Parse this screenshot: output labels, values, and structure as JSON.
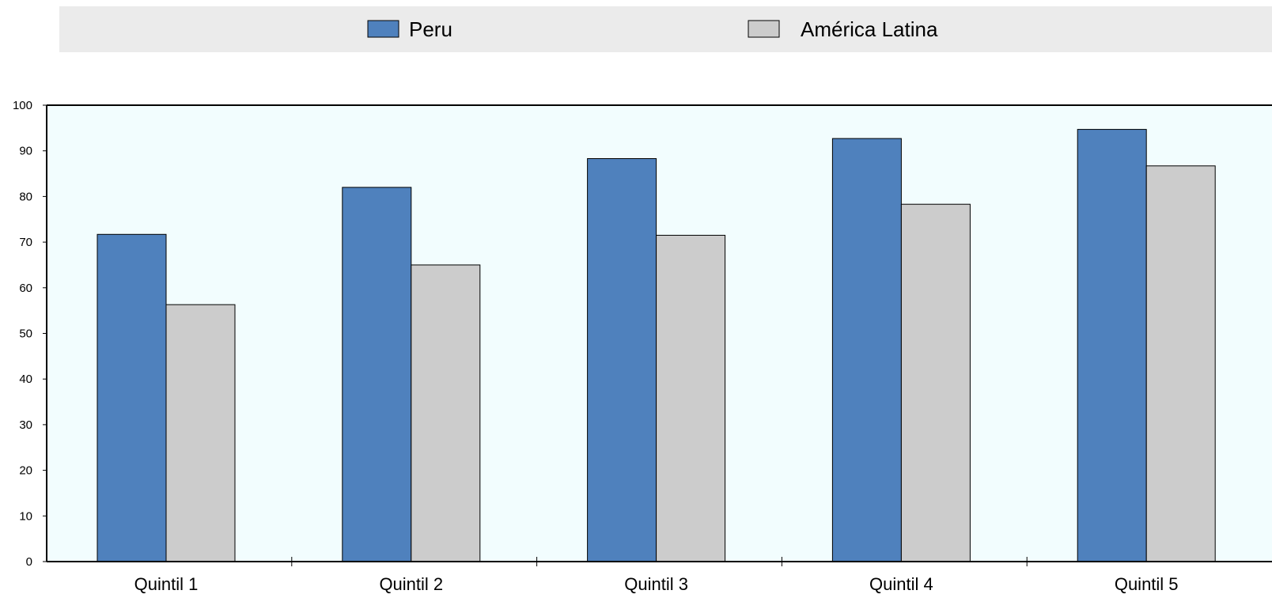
{
  "chart_data": {
    "type": "bar",
    "title": "",
    "xlabel": "",
    "ylabel": "",
    "categories": [
      "Quintil 1",
      "Quintil 2",
      "Quintil 3",
      "Quintil 4",
      "Quintil 5"
    ],
    "series": [
      {
        "name": "Peru",
        "values": [
          71.7,
          82.0,
          88.3,
          92.7,
          94.7
        ],
        "color": "#4f81bd"
      },
      {
        "name": "América Latina",
        "values": [
          56.3,
          65.0,
          71.5,
          78.3,
          86.7
        ],
        "color": "#cccccc"
      }
    ],
    "ylim": [
      0,
      100
    ],
    "yticks": [
      "0",
      "10",
      "20",
      "30",
      "40",
      "50",
      "60",
      "70",
      "80",
      "90",
      "100"
    ],
    "grid": false,
    "legend_position": "top",
    "colors": {
      "plot_background": "#f2fdfe",
      "legend_background": "#ebebeb",
      "bar_outline": "#000000",
      "axis": "#000000"
    }
  }
}
